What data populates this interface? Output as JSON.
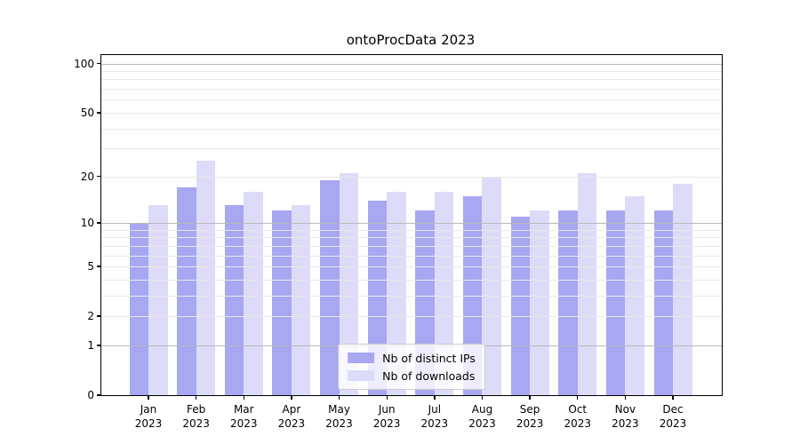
{
  "chart_data": {
    "type": "bar",
    "title": "ontoProcData 2023",
    "xlabel": "",
    "ylabel": "",
    "y_scale": "log1p",
    "ylim": [
      0,
      113
    ],
    "grid": "on",
    "legend_position": "lower center",
    "categories": [
      {
        "month": "Jan",
        "year": "2023"
      },
      {
        "month": "Feb",
        "year": "2023"
      },
      {
        "month": "Mar",
        "year": "2023"
      },
      {
        "month": "Apr",
        "year": "2023"
      },
      {
        "month": "May",
        "year": "2023"
      },
      {
        "month": "Jun",
        "year": "2023"
      },
      {
        "month": "Jul",
        "year": "2023"
      },
      {
        "month": "Aug",
        "year": "2023"
      },
      {
        "month": "Sep",
        "year": "2023"
      },
      {
        "month": "Oct",
        "year": "2023"
      },
      {
        "month": "Nov",
        "year": "2023"
      },
      {
        "month": "Dec",
        "year": "2023"
      }
    ],
    "series": [
      {
        "name": "Nb of distinct IPs",
        "color": "#a7a7f2",
        "values": [
          10,
          17,
          13,
          12,
          19,
          14,
          12,
          15,
          11,
          12,
          12,
          12
        ]
      },
      {
        "name": "Nb of downloads",
        "color": "#dcdcf9",
        "values": [
          13,
          25,
          16,
          13,
          21,
          16,
          16,
          20,
          12,
          21,
          15,
          18
        ]
      }
    ],
    "yticks": [
      0,
      1,
      2,
      5,
      10,
      20,
      50,
      100
    ],
    "gridlines_major": [
      1,
      10,
      100
    ],
    "gridlines_minor": [
      2,
      3,
      4,
      5,
      6,
      7,
      8,
      9,
      20,
      30,
      40,
      50,
      60,
      70,
      80,
      90
    ]
  },
  "colors": {
    "background": "#ffffff",
    "axis": "#000000",
    "grid_minor": "#e8e8e8",
    "grid_major": "#b9b9b9",
    "legend_border": "#cccccc"
  }
}
